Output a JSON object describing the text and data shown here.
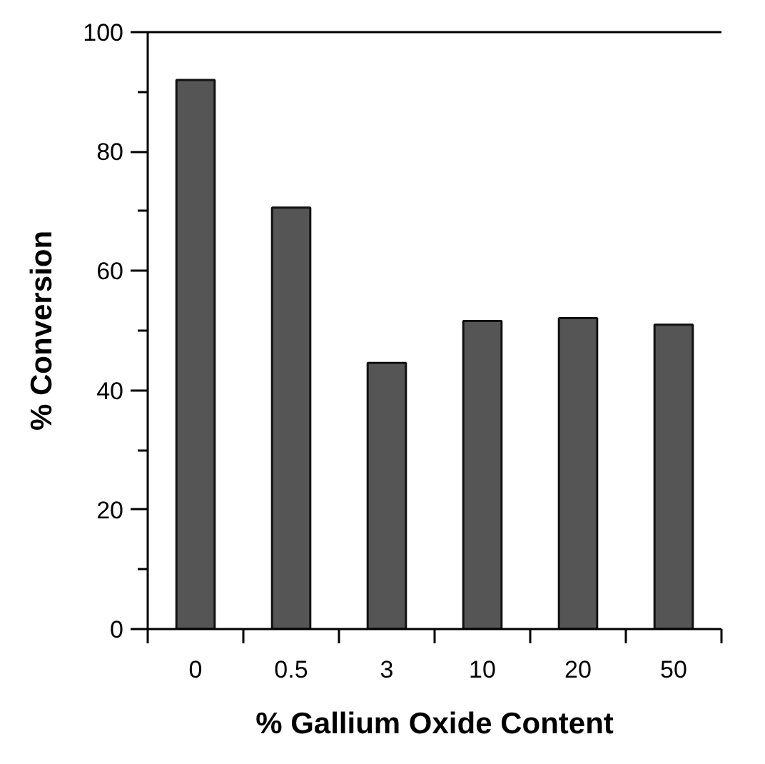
{
  "chart_data": {
    "type": "bar",
    "xlabel": "% Gallium Oxide Content",
    "ylabel": "% Conversion",
    "categories": [
      "0",
      "0.5",
      "3",
      "10",
      "20",
      "50"
    ],
    "values": [
      92,
      70.6,
      44.6,
      51.6,
      52.1,
      51.0
    ],
    "color": "#555555",
    "ylim": [
      0,
      100
    ],
    "yticks": [
      0,
      {
        "value": 10,
        "label": null
      },
      20,
      {
        "value": 30,
        "label": null
      },
      40,
      {
        "value": 50,
        "label": null
      },
      60,
      {
        "value": 70,
        "label": null
      },
      80,
      {
        "value": 90,
        "label": null
      },
      100
    ],
    "grid": false
  }
}
